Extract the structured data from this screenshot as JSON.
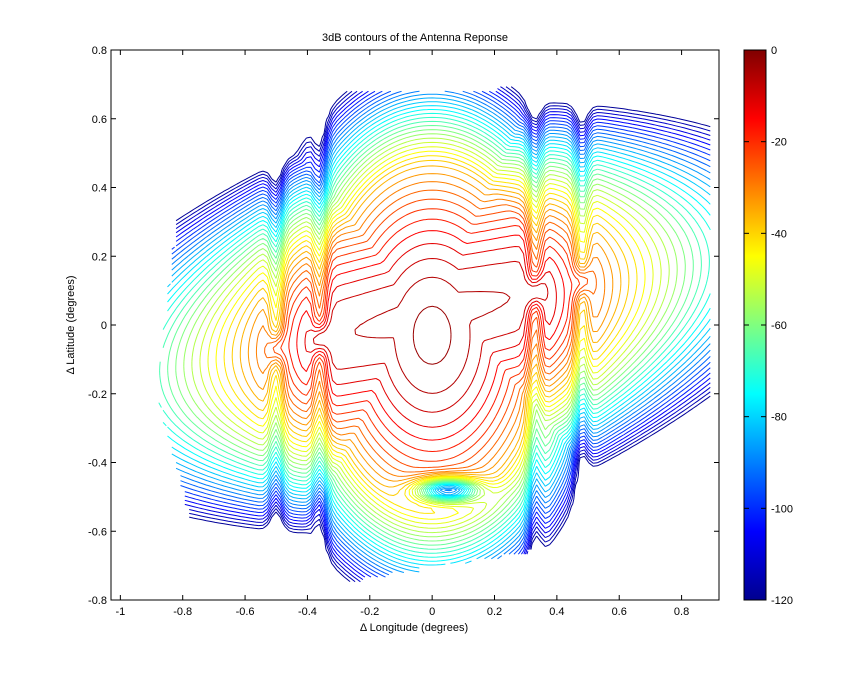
{
  "chart_data": {
    "type": "contour",
    "title": "3dB contours of the Antenna Reponse",
    "xlabel": "Δ Longitude (degrees)",
    "ylabel": "Δ Latitude (degrees)",
    "xlim": [
      -1.03,
      0.92
    ],
    "ylim": [
      -0.8,
      0.8
    ],
    "xticks": [
      -1,
      -0.8,
      -0.6,
      -0.4,
      -0.2,
      0,
      0.2,
      0.4,
      0.6,
      0.8
    ],
    "yticks": [
      -0.8,
      -0.6,
      -0.4,
      -0.2,
      0,
      0.2,
      0.4,
      0.6,
      0.8
    ],
    "contour_step_db": 3,
    "grid": false,
    "colormap": "jet",
    "colorbar": {
      "range": [
        -120,
        0
      ],
      "ticks": [
        0,
        -20,
        -40,
        -60,
        -80,
        -100,
        -120
      ],
      "placement": "right"
    },
    "features": {
      "main_beam_peak": {
        "x": 0.0,
        "y": 0.03,
        "level_db": 0
      },
      "beam_ridge_slope_deg_per_deg": 0.2,
      "sidelobe_nodes_x": [
        -0.5,
        -0.36,
        0.33,
        0.48
      ],
      "deep_null": {
        "x": 0.05,
        "y": -0.48,
        "level_db": -120
      }
    }
  }
}
